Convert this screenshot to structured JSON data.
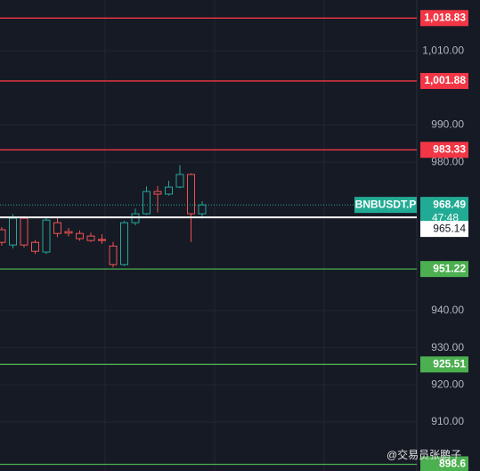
{
  "chart_data": {
    "type": "candlestick",
    "symbol": "BNBUSDT.P",
    "countdown": "47:48",
    "ylim": [
      1023.7,
      896.8
    ],
    "yticks": [
      {
        "value": 1010,
        "label": "1,010.00"
      },
      {
        "value": 990,
        "label": "990.00"
      },
      {
        "value": 980,
        "label": "980.00"
      },
      {
        "value": 940,
        "label": "940.00"
      },
      {
        "value": 930,
        "label": "930.00"
      },
      {
        "value": 920,
        "label": "920.00"
      },
      {
        "value": 910,
        "label": "910.00"
      }
    ],
    "grid": true,
    "up_color": "#26a69a",
    "down_color": "#ef5350",
    "open": [
      961.8,
      957.7,
      964.9,
      958.4,
      955.8,
      963.7,
      961.3,
      960.8,
      960.1,
      959.2,
      957.4,
      952.4,
      963.7,
      966.1,
      972.1,
      971.4,
      973.3,
      976.7,
      966.1
    ],
    "high": [
      962.5,
      966.0,
      965.5,
      959.0,
      965.2,
      965.0,
      962.3,
      961.6,
      961.0,
      960.6,
      958.5,
      964.2,
      967.5,
      973.5,
      973.6,
      975.0,
      979.2,
      977.0,
      969.5
    ],
    "low": [
      957.5,
      956.8,
      957.0,
      955.3,
      955.2,
      959.8,
      960.0,
      958.8,
      958.5,
      958.0,
      951.6,
      952.0,
      963.0,
      965.8,
      966.5,
      971.0,
      973.0,
      958.5,
      964.8
    ],
    "close": [
      958.4,
      964.9,
      957.7,
      956.0,
      964.4,
      960.8,
      960.9,
      959.4,
      958.9,
      958.9,
      952.4,
      963.7,
      966.1,
      972.1,
      971.4,
      973.3,
      976.7,
      966.1,
      968.49
    ],
    "last_price": 968.49,
    "mark_price": 965.14,
    "levels": [
      {
        "value": 1018.83,
        "label": "1,018.83",
        "color": "#f23645"
      },
      {
        "value": 1001.88,
        "label": "1,001.88",
        "color": "#f23645"
      },
      {
        "value": 983.33,
        "color": "#f23645"
      },
      {
        "value": 951.22,
        "color": "#4caf50"
      },
      {
        "value": 925.51,
        "color": "#4caf50"
      },
      {
        "value": 898.6,
        "color": "#4caf50"
      }
    ],
    "watermark": "@交易员张鹏子"
  }
}
